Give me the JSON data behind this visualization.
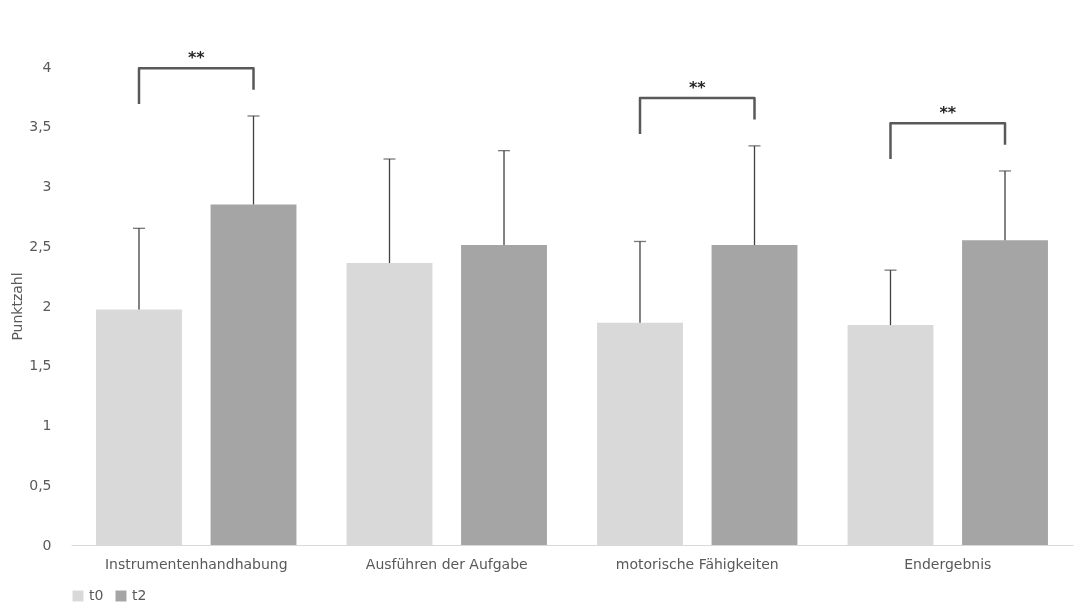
{
  "chart_data": {
    "type": "bar",
    "ylabel": "Punktzahl",
    "categories": [
      "Instrumentenhandhabung",
      "Ausführen der Aufgabe",
      "motorische Fähigkeiten",
      "Endergebnis"
    ],
    "series": [
      {
        "name": "t0",
        "color": "#d9d9d9",
        "values": [
          1.97,
          2.36,
          1.86,
          1.84
        ],
        "errors": [
          [
            1.97,
            2.65
          ],
          [
            2.36,
            3.23
          ],
          [
            1.86,
            2.54
          ],
          [
            1.84,
            2.3
          ]
        ]
      },
      {
        "name": "t2",
        "color": "#a5a5a5",
        "values": [
          2.85,
          2.51,
          2.51,
          2.55
        ],
        "errors": [
          [
            2.85,
            3.59
          ],
          [
            2.51,
            3.3
          ],
          [
            2.51,
            3.34
          ],
          [
            2.55,
            3.13
          ]
        ]
      }
    ],
    "ylim": [
      0,
      4
    ],
    "yticks": [
      0,
      {
        "value": 0.5,
        "label": "0,5"
      },
      1,
      {
        "value": 1.5,
        "label": "1,5"
      },
      2,
      {
        "value": 2.5,
        "label": "2,5"
      },
      3,
      {
        "value": 3.5,
        "label": "3,5"
      },
      4
    ],
    "annotations": [
      "**",
      "**",
      "**"
    ],
    "grid": false,
    "legend": "bottom"
  }
}
